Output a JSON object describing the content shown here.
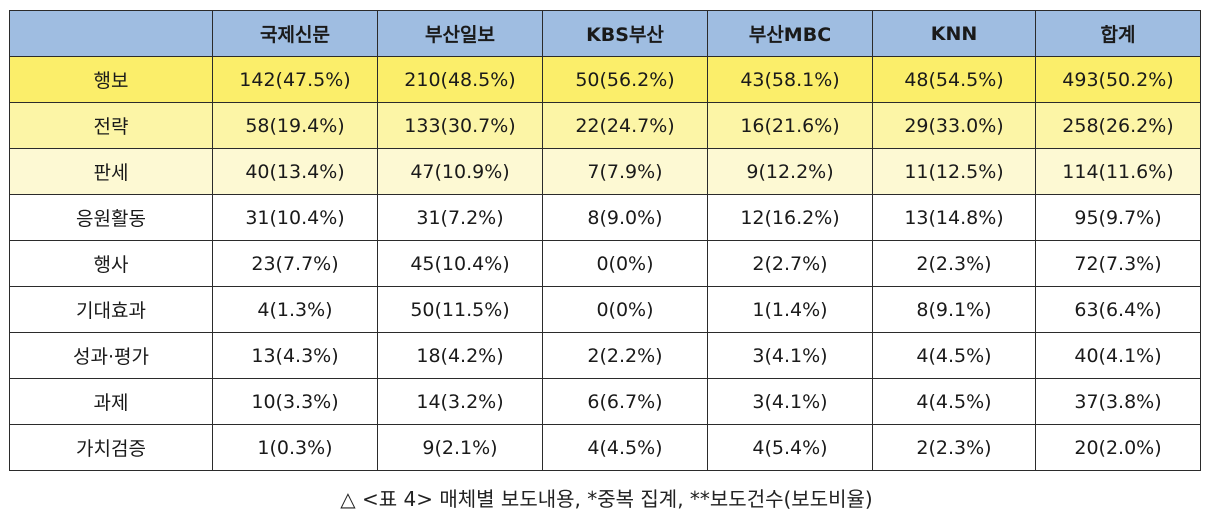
{
  "table": {
    "headers": [
      "",
      "국제신문",
      "부산일보",
      "KBS부산",
      "부산MBC",
      "KNN",
      "합계"
    ],
    "rows": [
      {
        "label": "행보",
        "cells": [
          "142(47.5%)",
          "210(48.5%)",
          "50(56.2%)",
          "43(58.1%)",
          "48(54.5%)",
          "493(50.2%)"
        ],
        "highlight": "#fbee6a"
      },
      {
        "label": "전략",
        "cells": [
          "58(19.4%)",
          "133(30.7%)",
          "22(24.7%)",
          "16(21.6%)",
          "29(33.0%)",
          "258(26.2%)"
        ],
        "highlight": "#fcf5a6"
      },
      {
        "label": "판세",
        "cells": [
          "40(13.4%)",
          "47(10.9%)",
          "7(7.9%)",
          "9(12.2%)",
          "11(12.5%)",
          "114(11.6%)"
        ],
        "highlight": "#fdf9d3"
      },
      {
        "label": "응원활동",
        "cells": [
          "31(10.4%)",
          "31(7.2%)",
          "8(9.0%)",
          "12(16.2%)",
          "13(14.8%)",
          "95(9.7%)"
        ]
      },
      {
        "label": "행사",
        "cells": [
          "23(7.7%)",
          "45(10.4%)",
          "0(0%)",
          "2(2.7%)",
          "2(2.3%)",
          "72(7.3%)"
        ]
      },
      {
        "label": "기대효과",
        "cells": [
          "4(1.3%)",
          "50(11.5%)",
          "0(0%)",
          "1(1.4%)",
          "8(9.1%)",
          "63(6.4%)"
        ]
      },
      {
        "label": "성과·평가",
        "cells": [
          "13(4.3%)",
          "18(4.2%)",
          "2(2.2%)",
          "3(4.1%)",
          "4(4.5%)",
          "40(4.1%)"
        ]
      },
      {
        "label": "과제",
        "cells": [
          "10(3.3%)",
          "14(3.2%)",
          "6(6.7%)",
          "3(4.1%)",
          "4(4.5%)",
          "37(3.8%)"
        ]
      },
      {
        "label": "가치검증",
        "cells": [
          "1(0.3%)",
          "9(2.1%)",
          "4(4.5%)",
          "4(5.4%)",
          "2(2.3%)",
          "20(2.0%)"
        ]
      }
    ]
  },
  "caption": "△ <표 4> 매체별 보도내용, *중복 집계, **보도건수(보도비율)",
  "colors": {
    "header_bg": "#9fbde1"
  }
}
